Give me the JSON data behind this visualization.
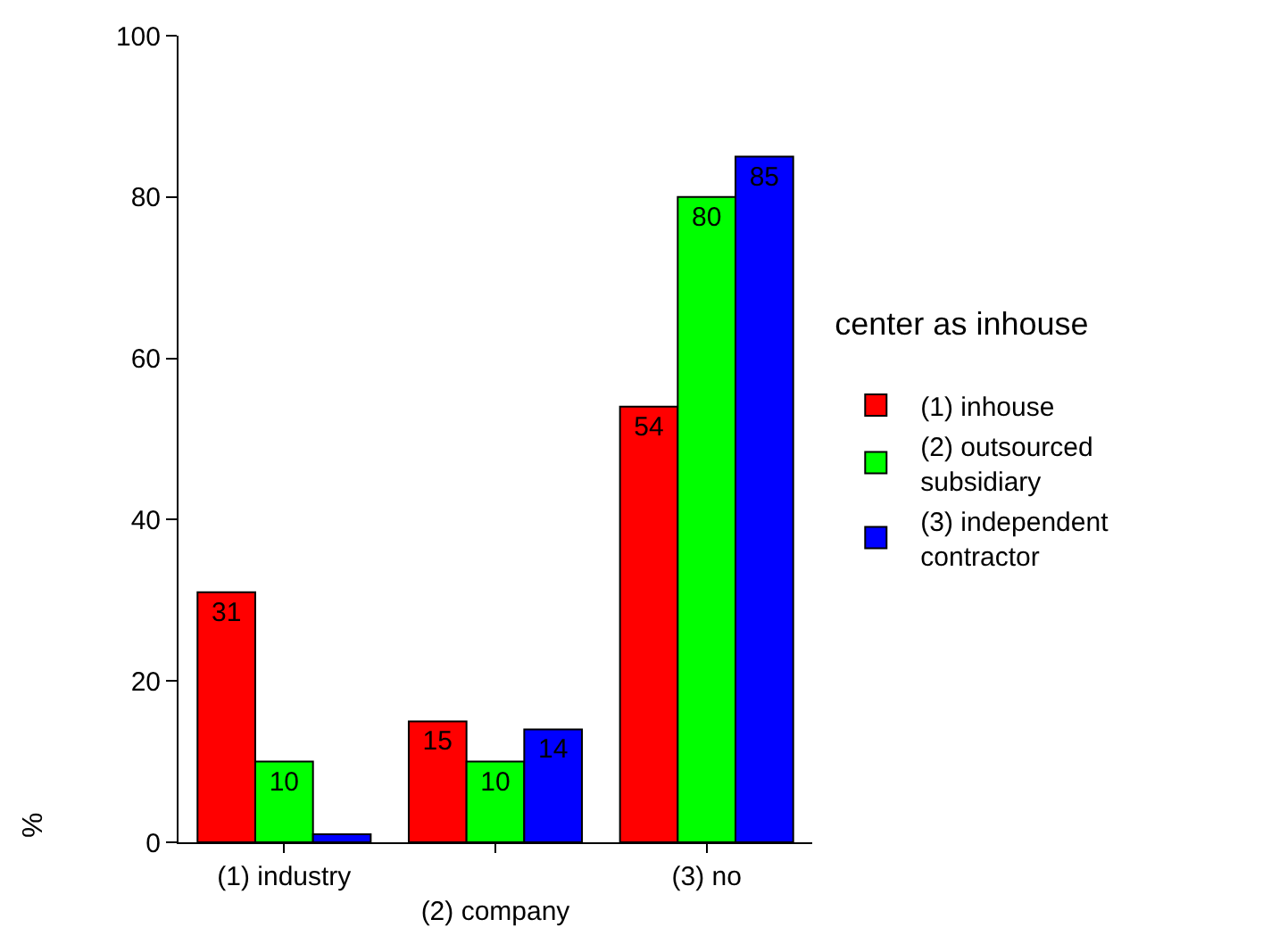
{
  "chart_data": {
    "type": "bar",
    "categories": [
      "(1) industry",
      "(2) company",
      "(3) no"
    ],
    "series": [
      {
        "name": "(1) inhouse",
        "color": "#ff0000",
        "values": [
          31,
          15,
          54
        ],
        "value_labels": [
          "31",
          "15",
          "54"
        ]
      },
      {
        "name": "(2) outsourced subsidiary",
        "color": "#00ff00",
        "values": [
          10,
          10,
          80
        ],
        "value_labels": [
          "10",
          "10",
          "80"
        ]
      },
      {
        "name": "(3) independent contractor",
        "color": "#0000ff",
        "values": [
          1,
          14,
          85
        ],
        "value_labels": [
          null,
          "14",
          "85"
        ]
      }
    ],
    "ylabel": "%",
    "legend_title": "center as inhouse",
    "legend": "right",
    "ylim": [
      0,
      100
    ],
    "yticks": [
      0,
      20,
      40,
      60,
      80,
      100
    ],
    "grid": false
  }
}
